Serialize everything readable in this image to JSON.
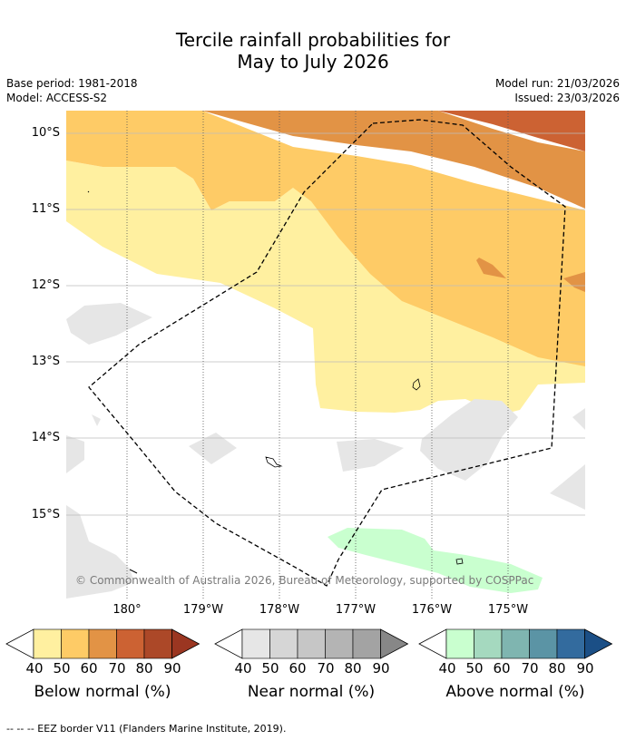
{
  "title_line1": "Tercile rainfall probabilities for",
  "title_line2": "May to July 2026",
  "base_period": "Base period: 1981-2018",
  "model": "Model: ACCESS-S2",
  "model_run": "Model run: 21/03/2026",
  "issued": "Issued: 23/03/2026",
  "lat_labels": [
    "10°S",
    "11°S",
    "12°S",
    "13°S",
    "14°S",
    "15°S"
  ],
  "lon_labels": [
    "180°",
    "179°W",
    "178°W",
    "177°W",
    "176°W",
    "175°W"
  ],
  "copyright": "© Commonwealth of Australia 2026, Bureau of Meteorology, supported by COSPPac",
  "legend_ticks": [
    "40",
    "50",
    "60",
    "70",
    "80",
    "90"
  ],
  "colorbars": [
    {
      "label": "Below normal (%)",
      "colors": [
        "#fff0a0",
        "#fecb66",
        "#e29345",
        "#cc6233",
        "#ac4828",
        "#9b3621"
      ]
    },
    {
      "label": "Near normal (%)",
      "colors": [
        "#e6e6e6",
        "#d6d6d6",
        "#c6c6c6",
        "#b4b4b4",
        "#a3a3a3",
        "#878787"
      ]
    },
    {
      "label": "Above normal (%)",
      "colors": [
        "#c9ffcf",
        "#a5d9bf",
        "#7fb5b0",
        "#5b94a5",
        "#336b9e",
        "#1b4f86"
      ]
    }
  ],
  "footnote": "--  --  -- EEZ border V11 (Flanders Marine Institute, 2019)."
}
